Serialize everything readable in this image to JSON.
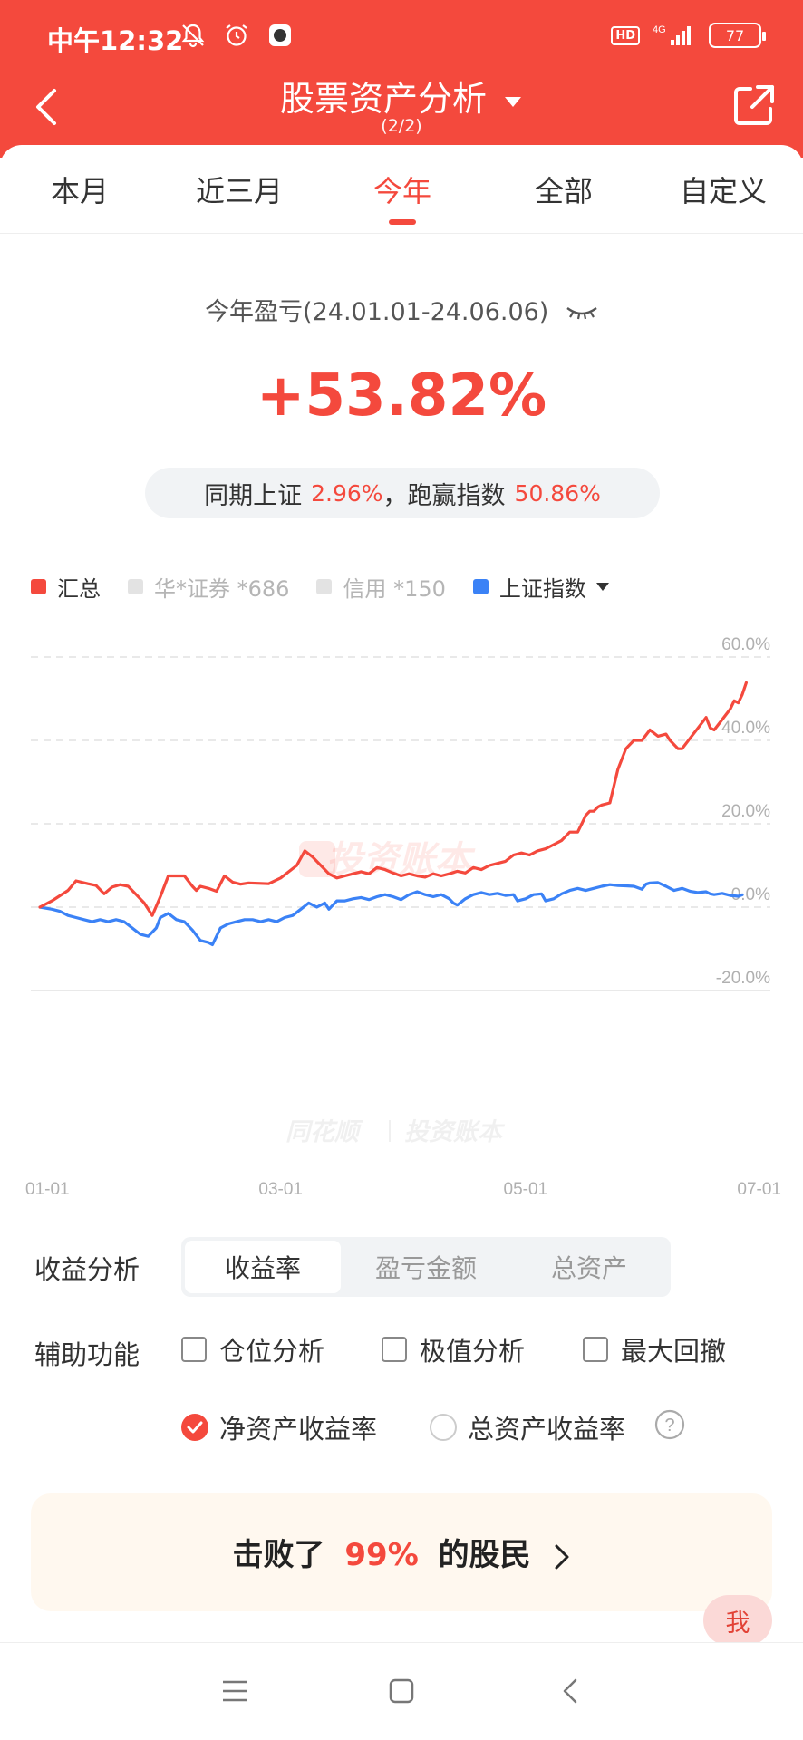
{
  "status_bar": {
    "time": "中午12:32",
    "network": "4G",
    "hd": "HD",
    "battery": "77",
    "icons": [
      "bell-off-icon",
      "alarm-icon",
      "app-notification-icon",
      "signal-icon"
    ]
  },
  "header": {
    "title": "股票资产分析",
    "subtitle": "(2/2)"
  },
  "tabs": [
    {
      "label": "本月",
      "active": false
    },
    {
      "label": "近三月",
      "active": false
    },
    {
      "label": "今年",
      "active": true
    },
    {
      "label": "全部",
      "active": false
    },
    {
      "label": "自定义",
      "active": false
    }
  ],
  "summary": {
    "label": "今年盈亏(24.01.01-24.06.06)",
    "value": "+53.82%",
    "compare_prefix": "同期上证",
    "compare_sh": "2.96%",
    "compare_mid": "，跑赢指数",
    "compare_beat": "50.86%"
  },
  "legend": [
    {
      "label": "汇总",
      "color": "#f4493d",
      "active": true
    },
    {
      "label": "华*证券 *686",
      "color": "#e3e3e3",
      "active": false
    },
    {
      "label": "信用 *150",
      "color": "#e3e3e3",
      "active": false
    },
    {
      "label": "上证指数",
      "color": "#3b82f6",
      "active": true
    }
  ],
  "watermark": {
    "center": "投资账本",
    "bottom_left": "同花顺",
    "bottom_right": "投资账本"
  },
  "chart_data": {
    "type": "line",
    "x_ticks": [
      "01-01",
      "03-01",
      "05-01",
      "07-01"
    ],
    "y_ticks": [
      "60.0%",
      "40.0%",
      "20.0%",
      "0.0%",
      "-20.0%"
    ],
    "ylim": [
      -20,
      60
    ],
    "xlim_days": [
      0,
      182
    ],
    "series": [
      {
        "name": "汇总",
        "color": "#f4493d",
        "points": [
          [
            0,
            0
          ],
          [
            3,
            1.5
          ],
          [
            7,
            4
          ],
          [
            9,
            6.3
          ],
          [
            12,
            5.6
          ],
          [
            14,
            5.2
          ],
          [
            16,
            3.2
          ],
          [
            18,
            4.8
          ],
          [
            20,
            5.4
          ],
          [
            22,
            5
          ],
          [
            24,
            3
          ],
          [
            26,
            1
          ],
          [
            28,
            -2
          ],
          [
            30,
            2.5
          ],
          [
            32,
            7.5
          ],
          [
            36,
            7.5
          ],
          [
            38,
            5
          ],
          [
            39,
            4
          ],
          [
            40,
            5
          ],
          [
            42,
            4.5
          ],
          [
            44,
            3.8
          ],
          [
            46,
            7.5
          ],
          [
            48,
            6
          ],
          [
            50,
            5.5
          ],
          [
            52,
            5.8
          ],
          [
            55,
            5.7
          ],
          [
            57,
            5.6
          ],
          [
            60,
            7
          ],
          [
            62,
            8.5
          ],
          [
            64,
            10
          ],
          [
            66,
            13.5
          ],
          [
            68,
            12
          ],
          [
            70,
            10
          ],
          [
            72,
            8
          ],
          [
            74,
            7
          ],
          [
            76,
            7.5
          ],
          [
            78,
            8
          ],
          [
            80,
            8.5
          ],
          [
            82,
            8
          ],
          [
            84,
            9.5
          ],
          [
            86,
            9
          ],
          [
            88,
            8.2
          ],
          [
            90,
            7.5
          ],
          [
            92,
            8
          ],
          [
            94,
            7.5
          ],
          [
            96,
            7.2
          ],
          [
            98,
            8
          ],
          [
            100,
            7.5
          ],
          [
            102,
            8
          ],
          [
            104,
            8.6
          ],
          [
            106,
            8.2
          ],
          [
            108,
            9.5
          ],
          [
            110,
            9
          ],
          [
            112,
            10
          ],
          [
            114,
            10.5
          ],
          [
            116,
            11
          ],
          [
            118,
            12.5
          ],
          [
            120,
            13
          ],
          [
            122,
            12.5
          ],
          [
            124,
            13.5
          ],
          [
            126,
            14
          ],
          [
            128,
            15
          ],
          [
            130,
            16
          ],
          [
            132,
            18
          ],
          [
            134,
            18
          ],
          [
            135,
            20
          ],
          [
            136,
            22
          ],
          [
            137,
            23
          ],
          [
            138,
            23
          ],
          [
            139,
            24
          ],
          [
            140,
            24.5
          ],
          [
            142,
            25
          ],
          [
            143,
            29
          ],
          [
            144,
            33
          ],
          [
            146,
            38
          ],
          [
            148,
            40
          ],
          [
            150,
            40
          ],
          [
            152,
            42.5
          ],
          [
            154,
            41
          ],
          [
            156,
            41.5
          ],
          [
            157,
            40
          ],
          [
            159,
            38
          ],
          [
            160,
            38
          ],
          [
            162,
            40.5
          ],
          [
            164,
            43
          ],
          [
            166,
            45.5
          ],
          [
            167,
            43
          ],
          [
            168,
            42.5
          ],
          [
            170,
            45
          ],
          [
            172,
            47.5
          ],
          [
            173,
            49.5
          ],
          [
            174,
            49
          ],
          [
            175,
            51
          ],
          [
            176,
            53.82
          ]
        ]
      },
      {
        "name": "上证指数",
        "color": "#3b82f6",
        "points": [
          [
            0,
            0
          ],
          [
            3,
            -0.5
          ],
          [
            5,
            -1
          ],
          [
            7,
            -2
          ],
          [
            9,
            -2.5
          ],
          [
            11,
            -3
          ],
          [
            13,
            -3.5
          ],
          [
            15,
            -3
          ],
          [
            17,
            -3.5
          ],
          [
            19,
            -3
          ],
          [
            21,
            -3.5
          ],
          [
            23,
            -5
          ],
          [
            25,
            -6.5
          ],
          [
            27,
            -7
          ],
          [
            29,
            -5
          ],
          [
            30,
            -2.5
          ],
          [
            32,
            -1.5
          ],
          [
            34,
            -3
          ],
          [
            36,
            -3.5
          ],
          [
            38,
            -5.5
          ],
          [
            40,
            -8
          ],
          [
            42,
            -8.5
          ],
          [
            43,
            -9
          ],
          [
            45,
            -5
          ],
          [
            47,
            -4
          ],
          [
            49,
            -3.5
          ],
          [
            51,
            -3
          ],
          [
            53,
            -3
          ],
          [
            55,
            -3.5
          ],
          [
            57,
            -3
          ],
          [
            59,
            -3.5
          ],
          [
            61,
            -2.5
          ],
          [
            63,
            -2
          ],
          [
            65,
            -0.5
          ],
          [
            67,
            1
          ],
          [
            69,
            0
          ],
          [
            71,
            1
          ],
          [
            72,
            -0.5
          ],
          [
            74,
            1.5
          ],
          [
            76,
            1.5
          ],
          [
            78,
            2
          ],
          [
            80,
            2.3
          ],
          [
            82,
            1.8
          ],
          [
            84,
            2.5
          ],
          [
            86,
            3
          ],
          [
            88,
            2.5
          ],
          [
            90,
            1.8
          ],
          [
            92,
            3
          ],
          [
            94,
            3.7
          ],
          [
            96,
            3
          ],
          [
            98,
            2.5
          ],
          [
            100,
            3
          ],
          [
            102,
            2
          ],
          [
            103,
            1
          ],
          [
            104,
            0.5
          ],
          [
            106,
            2
          ],
          [
            108,
            3
          ],
          [
            110,
            3.5
          ],
          [
            112,
            3
          ],
          [
            114,
            3.3
          ],
          [
            116,
            2.8
          ],
          [
            118,
            3
          ],
          [
            119,
            1.5
          ],
          [
            121,
            2
          ],
          [
            123,
            3
          ],
          [
            125,
            3.2
          ],
          [
            126,
            1.5
          ],
          [
            128,
            2
          ],
          [
            130,
            3.2
          ],
          [
            132,
            4
          ],
          [
            134,
            4.5
          ],
          [
            136,
            4
          ],
          [
            138,
            4.5
          ],
          [
            140,
            5
          ],
          [
            142,
            5.4
          ],
          [
            144,
            5.2
          ],
          [
            146,
            5.1
          ],
          [
            148,
            5
          ],
          [
            150,
            4.3
          ],
          [
            151,
            5.5
          ],
          [
            152,
            5.8
          ],
          [
            154,
            5.9
          ],
          [
            156,
            5
          ],
          [
            158,
            4
          ],
          [
            160,
            4.5
          ],
          [
            162,
            3.8
          ],
          [
            164,
            3.5
          ],
          [
            166,
            3.7
          ],
          [
            167,
            3.2
          ],
          [
            168,
            3
          ],
          [
            170,
            3.3
          ],
          [
            172,
            2.8
          ],
          [
            174,
            2.6
          ],
          [
            175,
            2.96
          ]
        ]
      }
    ]
  },
  "analysis": {
    "label": "收益分析",
    "options": [
      {
        "label": "收益率",
        "active": true
      },
      {
        "label": "盈亏金额",
        "active": false
      },
      {
        "label": "总资产",
        "active": false
      }
    ]
  },
  "aux": {
    "label": "辅助功能",
    "checkboxes": [
      {
        "label": "仓位分析",
        "checked": false
      },
      {
        "label": "极值分析",
        "checked": false
      },
      {
        "label": "最大回撤",
        "checked": false
      }
    ]
  },
  "yield_mode": {
    "net": {
      "label": "净资产收益率",
      "checked": true
    },
    "total": {
      "label": "总资产收益率",
      "checked": false
    }
  },
  "result": {
    "prefix": "击败了",
    "value": "99%",
    "suffix": "的股民"
  },
  "me_badge": "我"
}
